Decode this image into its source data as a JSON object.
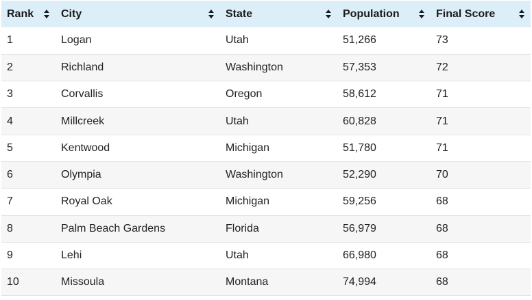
{
  "columns": [
    {
      "label": "Rank",
      "sort_icon": "sort-updown-icon"
    },
    {
      "label": "City",
      "sort_icon": "sort-updown-icon"
    },
    {
      "label": "State",
      "sort_icon": "sort-updown-icon"
    },
    {
      "label": "Population",
      "sort_icon": "sort-updown-icon"
    },
    {
      "label": "Final Score",
      "sort_icon": "sort-updown-icon"
    }
  ],
  "rows": [
    {
      "rank": "1",
      "city": "Logan",
      "state": "Utah",
      "population": "51,266",
      "score": "73"
    },
    {
      "rank": "2",
      "city": "Richland",
      "state": "Washington",
      "population": "57,353",
      "score": "72"
    },
    {
      "rank": "3",
      "city": "Corvallis",
      "state": "Oregon",
      "population": "58,612",
      "score": "71"
    },
    {
      "rank": "4",
      "city": "Millcreek",
      "state": "Utah",
      "population": "60,828",
      "score": "71"
    },
    {
      "rank": "5",
      "city": "Kentwood",
      "state": "Michigan",
      "population": "51,780",
      "score": "71"
    },
    {
      "rank": "6",
      "city": "Olympia",
      "state": "Washington",
      "population": "52,290",
      "score": "70"
    },
    {
      "rank": "7",
      "city": "Royal Oak",
      "state": "Michigan",
      "population": "59,256",
      "score": "68"
    },
    {
      "rank": "8",
      "city": "Palm Beach Gardens",
      "state": "Florida",
      "population": "56,979",
      "score": "68"
    },
    {
      "rank": "9",
      "city": "Lehi",
      "state": "Utah",
      "population": "66,980",
      "score": "68"
    },
    {
      "rank": "10",
      "city": "Missoula",
      "state": "Montana",
      "population": "74,994",
      "score": "68"
    }
  ],
  "colors": {
    "header_bg": "#dceef8",
    "stripe_bg": "#f6f6f6",
    "row_border": "#e2e2e2"
  }
}
